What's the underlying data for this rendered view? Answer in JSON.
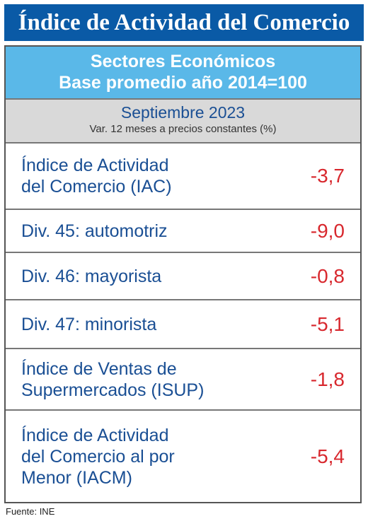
{
  "title": "Índice de Actividad del Comercio",
  "header": {
    "line1": "Sectores Económicos",
    "line2": "Base promedio año 2014=100"
  },
  "period": {
    "month": "Septiembre 2023",
    "note": "Var. 12 meses a precios constantes (%)"
  },
  "rows": [
    {
      "label_lines": [
        "Índice de Actividad",
        "del Comercio (IAC)"
      ],
      "value": "-3,7"
    },
    {
      "label_lines": [
        "Div. 45: automotriz"
      ],
      "value": "-9,0"
    },
    {
      "label_lines": [
        "Div. 46: mayorista"
      ],
      "value": "-0,8"
    },
    {
      "label_lines": [
        "Div. 47: minorista"
      ],
      "value": "-5,1"
    },
    {
      "label_lines": [
        "Índice de Ventas de",
        "Supermercados (ISUP)"
      ],
      "value": "-1,8"
    },
    {
      "label_lines": [
        "Índice de Actividad",
        "del Comercio al por",
        "Menor (IACM)"
      ],
      "value": "-5,4"
    }
  ],
  "source": "Fuente: INE",
  "colors": {
    "title_bg": "#0a5aa6",
    "header_bg": "#5ab8e8",
    "period_bg": "#d9d9d9",
    "label": "#1a4f94",
    "value": "#d8282e"
  }
}
